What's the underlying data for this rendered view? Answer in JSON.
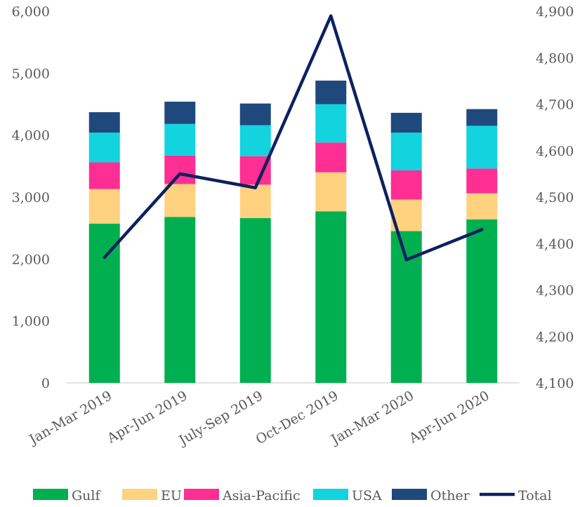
{
  "chart_data": {
    "type": "bar",
    "stacked": true,
    "categories": [
      "Jan-Mar 2019",
      "Apr-Jun 2019",
      "July-Sep 2019",
      "Oct-Dec 2019",
      "Jan-Mar 2020",
      "Apr-Jun 2020"
    ],
    "series": [
      {
        "name": "Gulf",
        "color": "#00b050",
        "values": [
          2570,
          2680,
          2660,
          2770,
          2450,
          2640
        ]
      },
      {
        "name": "EU",
        "color": "#ffd280",
        "values": [
          560,
          530,
          540,
          630,
          510,
          420
        ]
      },
      {
        "name": "Asia-Pacific",
        "color": "#ff2e93",
        "values": [
          430,
          460,
          460,
          480,
          470,
          400
        ]
      },
      {
        "name": "USA",
        "color": "#12d3de",
        "values": [
          480,
          510,
          500,
          620,
          610,
          690
        ]
      },
      {
        "name": "Other",
        "color": "#1f497d",
        "values": [
          330,
          360,
          350,
          380,
          320,
          270
        ]
      }
    ],
    "line_series": {
      "name": "Total",
      "color": "#0d2160",
      "axis": "right",
      "values": [
        4370,
        4550,
        4520,
        4890,
        4365,
        4430
      ]
    },
    "y_left": {
      "min": 0,
      "max": 6000,
      "step": 1000,
      "ticks": [
        "0",
        "1,000",
        "2,000",
        "3,000",
        "4,000",
        "5,000",
        "6,000"
      ]
    },
    "y_right": {
      "min": 4100,
      "max": 4900,
      "step": 100,
      "ticks": [
        "4,100",
        "4,200",
        "4,300",
        "4,400",
        "4,500",
        "4,600",
        "4,700",
        "4,800",
        "4,900"
      ]
    },
    "grid": false,
    "legend_position": "bottom",
    "legend": [
      "Gulf",
      "EU",
      "Asia-Pacific",
      "USA",
      "Other",
      "Total"
    ],
    "title": "",
    "xlabel": "",
    "ylabel": ""
  }
}
